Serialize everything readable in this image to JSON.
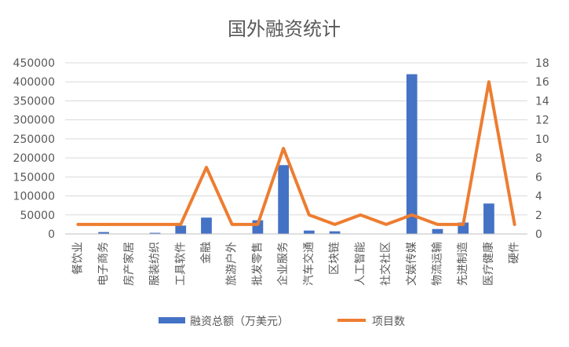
{
  "chart_data": {
    "type": "bar",
    "title": "国外融资统计",
    "categories": [
      "餐饮业",
      "电子商务",
      "房产家居",
      "服装纺织",
      "工具软件",
      "金融",
      "旅游户外",
      "批发零售",
      "企业服务",
      "汽车交通",
      "区块链",
      "人工智能",
      "社交社区",
      "文娱传媒",
      "物流运输",
      "先进制造",
      "医疗健康",
      "硬件"
    ],
    "series": [
      {
        "name": "融资总额（万美元）",
        "type": "bar",
        "axis": "left",
        "color": "#4472C4",
        "values": [
          0,
          5000,
          0,
          3000,
          22000,
          43000,
          0,
          36000,
          181000,
          9000,
          7000,
          0,
          0,
          420000,
          13000,
          30000,
          80000,
          0
        ]
      },
      {
        "name": "项目数",
        "type": "line",
        "axis": "right",
        "color": "#ED7D31",
        "values": [
          1,
          1,
          1,
          1,
          1,
          7,
          1,
          1,
          9,
          2,
          1,
          2,
          1,
          2,
          1,
          1,
          16,
          1
        ]
      }
    ],
    "y_left": {
      "ticks": [
        "0",
        "50000",
        "100000",
        "150000",
        "200000",
        "250000",
        "300000",
        "350000",
        "400000",
        "450000"
      ],
      "ylim": [
        0,
        450000
      ]
    },
    "y_right": {
      "ticks": [
        "0",
        "2",
        "4",
        "6",
        "8",
        "10",
        "12",
        "14",
        "16",
        "18"
      ],
      "ylim": [
        0,
        18
      ]
    },
    "grid": true,
    "legend_position": "bottom"
  }
}
